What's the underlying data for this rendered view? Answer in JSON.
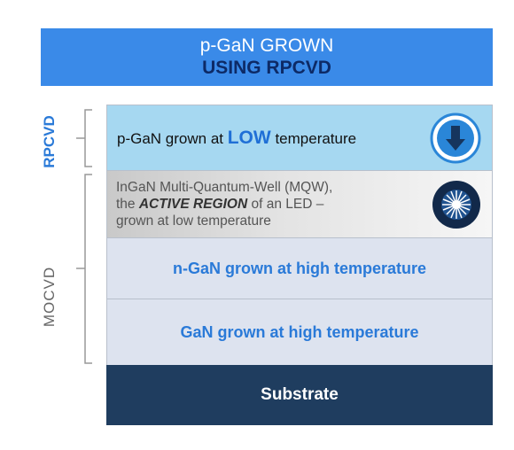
{
  "header": {
    "line1": "p-GaN GROWN",
    "line2": "USING RPCVD"
  },
  "side_labels": [
    "RPCVD",
    "MOCVD"
  ],
  "layers": [
    {
      "before": "p-GaN grown at ",
      "emphasis": "LOW",
      "after": " temperature"
    },
    {
      "line1": "InGaN Multi-Quantum-Well  (MQW),",
      "before": "the ",
      "emphasis": "ACTIVE REGION",
      "after": " of an LED –",
      "line3": "grown at low temperature"
    },
    {
      "text": "n-GaN grown at high temperature"
    },
    {
      "text": "GaN grown at high temperature"
    },
    {
      "text": "Substrate"
    }
  ]
}
